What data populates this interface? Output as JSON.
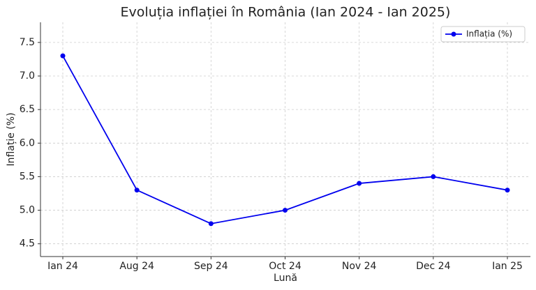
{
  "chart_data": {
    "type": "line",
    "title": "Evoluția inflației în România (Ian 2024 - Ian 2025)",
    "x_label": "Lună",
    "y_label": "Inflație (%)",
    "categories": [
      "Ian 24",
      "Aug 24",
      "Sep 24",
      "Oct 24",
      "Nov 24",
      "Dec 24",
      "Ian 25"
    ],
    "series": [
      {
        "name": "Inflația (%)",
        "color": "#0000ee",
        "values": [
          7.3,
          5.3,
          4.8,
          5.0,
          5.4,
          5.5,
          5.3
        ]
      }
    ],
    "ylim": [
      4.31,
      7.8
    ],
    "yticks": [
      4.5,
      {
        "value": 5,
        "label": "5.0"
      },
      5.5,
      {
        "value": 6,
        "label": "6.0"
      },
      6.5,
      {
        "value": 7,
        "label": "7.0"
      },
      7.5
    ],
    "grid": true,
    "legend": "upper right"
  }
}
